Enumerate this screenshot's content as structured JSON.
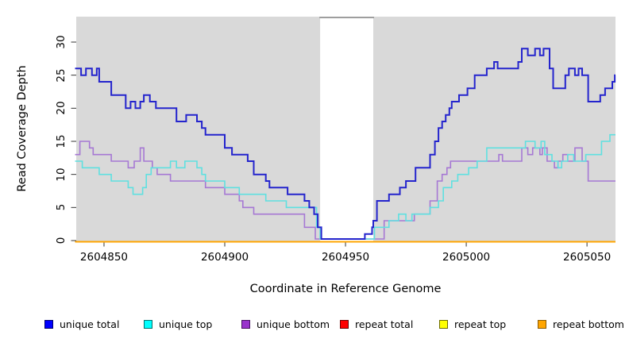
{
  "chart_data": {
    "type": "line",
    "step": true,
    "title": "",
    "xlabel": "Coordinate in Reference Genome",
    "ylabel": "Read Coverage Depth",
    "xlim": [
      2604838.5,
      2605061.8
    ],
    "ylim": [
      -0.12,
      33.84
    ],
    "grid": false,
    "panel_background": "#d9d9d9",
    "masked_region": {
      "x_start": 2604939.5,
      "x_end": 2604961.5,
      "color": "#ffffff",
      "top_edge_color": "#9e9e9e"
    },
    "xticks": [
      {
        "value": 2604850,
        "label": "2604850"
      },
      {
        "value": 2604900,
        "label": "2604900"
      },
      {
        "value": 2604950,
        "label": "2604950"
      },
      {
        "value": 2605000,
        "label": "2605000"
      },
      {
        "value": 2605050,
        "label": "2605050"
      }
    ],
    "yticks": [
      {
        "value": 0,
        "label": "0"
      },
      {
        "value": 5,
        "label": "5"
      },
      {
        "value": 10,
        "label": "10"
      },
      {
        "value": 15,
        "label": "15"
      },
      {
        "value": 20,
        "label": "20"
      },
      {
        "value": 25,
        "label": "25"
      },
      {
        "value": 30,
        "label": "30"
      }
    ],
    "series": [
      {
        "name": "repeat total",
        "group": "repeat",
        "color": "#ff0000",
        "width": 1.6,
        "steps": [
          [
            2604838,
            0
          ]
        ]
      },
      {
        "name": "repeat top",
        "group": "repeat",
        "color": "#ffff00",
        "width": 1.6,
        "steps": [
          [
            2604838,
            0
          ]
        ]
      },
      {
        "name": "repeat bottom",
        "group": "repeat",
        "color": "#ffa500",
        "width": 2,
        "steps": [
          [
            2604838,
            0
          ]
        ]
      },
      {
        "name": "unique bottom",
        "group": "unique",
        "color": "#a678d4",
        "width": 1.6,
        "steps": [
          [
            2604838,
            13
          ],
          [
            2604840,
            15
          ],
          [
            2604844,
            14
          ],
          [
            2604845.5,
            13
          ],
          [
            2604853,
            12
          ],
          [
            2604860,
            11
          ],
          [
            2604862.5,
            12
          ],
          [
            2604865,
            14
          ],
          [
            2604866.5,
            12
          ],
          [
            2604870,
            11
          ],
          [
            2604872,
            10
          ],
          [
            2604877.5,
            9
          ],
          [
            2604892,
            8
          ],
          [
            2604900,
            7
          ],
          [
            2604906,
            6
          ],
          [
            2604907.5,
            5
          ],
          [
            2604912,
            4
          ],
          [
            2604933,
            2
          ],
          [
            2604937.5,
            0
          ],
          [
            2604966,
            3
          ],
          [
            2604978.5,
            4
          ],
          [
            2604985,
            6
          ],
          [
            2604988,
            9
          ],
          [
            2604990,
            10
          ],
          [
            2604992,
            11
          ],
          [
            2604993.5,
            12
          ],
          [
            2605013.5,
            13
          ],
          [
            2605015,
            12
          ],
          [
            2605023,
            14
          ],
          [
            2605025.5,
            13
          ],
          [
            2605027.5,
            14
          ],
          [
            2605030.5,
            13
          ],
          [
            2605031.5,
            14
          ],
          [
            2605033.5,
            12
          ],
          [
            2605036.5,
            11
          ],
          [
            2605038,
            12
          ],
          [
            2605040,
            13
          ],
          [
            2605042,
            12
          ],
          [
            2605045,
            14
          ],
          [
            2605048,
            12
          ],
          [
            2605050.5,
            9
          ]
        ]
      },
      {
        "name": "unique top",
        "group": "unique",
        "color": "#5fe0e0",
        "width": 1.6,
        "steps": [
          [
            2604838,
            12
          ],
          [
            2604841,
            11
          ],
          [
            2604848,
            10
          ],
          [
            2604853,
            9
          ],
          [
            2604860,
            8
          ],
          [
            2604862,
            7
          ],
          [
            2604866,
            8
          ],
          [
            2604867.5,
            10
          ],
          [
            2604869.5,
            11
          ],
          [
            2604877.5,
            12
          ],
          [
            2604880,
            11
          ],
          [
            2604883.5,
            12
          ],
          [
            2604888.5,
            11
          ],
          [
            2604890.5,
            10
          ],
          [
            2604892,
            9
          ],
          [
            2604900,
            8
          ],
          [
            2604906,
            7
          ],
          [
            2604917,
            6
          ],
          [
            2604925.5,
            5
          ],
          [
            2604938,
            2
          ],
          [
            2604939.5,
            0
          ],
          [
            2604962,
            2
          ],
          [
            2604968,
            3
          ],
          [
            2604972,
            4
          ],
          [
            2604975,
            3
          ],
          [
            2604977.5,
            4
          ],
          [
            2604985,
            5
          ],
          [
            2604988.5,
            6
          ],
          [
            2604990.5,
            8
          ],
          [
            2604994,
            9
          ],
          [
            2604996.5,
            10
          ],
          [
            2605001,
            11
          ],
          [
            2605004.5,
            12
          ],
          [
            2605008.5,
            14
          ],
          [
            2605024.5,
            15
          ],
          [
            2605028.5,
            14
          ],
          [
            2605031,
            15
          ],
          [
            2605032.5,
            13
          ],
          [
            2605035.5,
            12
          ],
          [
            2605038,
            11
          ],
          [
            2605039.5,
            12
          ],
          [
            2605042,
            13
          ],
          [
            2605044.5,
            12
          ],
          [
            2605049.5,
            13
          ],
          [
            2605056,
            15
          ],
          [
            2605059.5,
            16
          ]
        ]
      },
      {
        "name": "unique total",
        "group": "unique",
        "color": "#2424cd",
        "width": 2,
        "steps": [
          [
            2604838,
            26
          ],
          [
            2604840.5,
            25
          ],
          [
            2604842.5,
            26
          ],
          [
            2604845,
            25
          ],
          [
            2604847,
            26
          ],
          [
            2604848,
            24
          ],
          [
            2604853,
            22
          ],
          [
            2604859,
            20
          ],
          [
            2604861,
            21
          ],
          [
            2604863,
            20
          ],
          [
            2604865,
            21
          ],
          [
            2604866.5,
            22
          ],
          [
            2604869,
            21
          ],
          [
            2604871.5,
            20
          ],
          [
            2604880,
            18
          ],
          [
            2604884,
            19
          ],
          [
            2604888.5,
            18
          ],
          [
            2604890.5,
            17
          ],
          [
            2604892,
            16
          ],
          [
            2604900,
            14
          ],
          [
            2604903,
            13
          ],
          [
            2604909.5,
            12
          ],
          [
            2604912,
            10
          ],
          [
            2604917,
            9
          ],
          [
            2604918.5,
            8
          ],
          [
            2604926,
            7
          ],
          [
            2604933,
            6
          ],
          [
            2604935,
            5
          ],
          [
            2604937,
            4
          ],
          [
            2604938.5,
            2
          ],
          [
            2604940,
            0
          ],
          [
            2604958,
            1
          ],
          [
            2604961,
            2
          ],
          [
            2604961.5,
            3
          ],
          [
            2604963,
            6
          ],
          [
            2604968,
            7
          ],
          [
            2604972.5,
            8
          ],
          [
            2604975,
            9
          ],
          [
            2604979,
            11
          ],
          [
            2604985,
            13
          ],
          [
            2604987,
            15
          ],
          [
            2604988.5,
            17
          ],
          [
            2604990,
            18
          ],
          [
            2604991.5,
            19
          ],
          [
            2604993,
            20
          ],
          [
            2604994,
            21
          ],
          [
            2604997,
            22
          ],
          [
            2605000.5,
            23
          ],
          [
            2605003.5,
            25
          ],
          [
            2605008.5,
            26
          ],
          [
            2605011.5,
            27
          ],
          [
            2605013,
            26
          ],
          [
            2605021.5,
            27
          ],
          [
            2605023,
            29
          ],
          [
            2605025.5,
            28
          ],
          [
            2605028.5,
            29
          ],
          [
            2605030.5,
            28
          ],
          [
            2605032,
            29
          ],
          [
            2605034.5,
            26
          ],
          [
            2605036,
            23
          ],
          [
            2605041,
            25
          ],
          [
            2605042.5,
            26
          ],
          [
            2605045,
            25
          ],
          [
            2605046.5,
            26
          ],
          [
            2605048,
            25
          ],
          [
            2605050.5,
            21
          ],
          [
            2605055.5,
            22
          ],
          [
            2605057.5,
            23
          ],
          [
            2605060.5,
            24
          ],
          [
            2605061.5,
            25
          ]
        ]
      }
    ],
    "legend": {
      "position": "bottom",
      "items": [
        {
          "label": "unique total",
          "fill": "#0000ff",
          "border": "#00006b"
        },
        {
          "label": "unique top",
          "fill": "#00ffff",
          "border": "#00716b"
        },
        {
          "label": "unique bottom",
          "fill": "#9933cc",
          "border": "#461162"
        },
        {
          "label": "repeat total",
          "fill": "#ff0000",
          "border": "#6b0000"
        },
        {
          "label": "repeat top",
          "fill": "#ffff00",
          "border": "#6b6b00"
        },
        {
          "label": "repeat bottom",
          "fill": "#ffa500",
          "border": "#8a5a00"
        }
      ]
    }
  }
}
